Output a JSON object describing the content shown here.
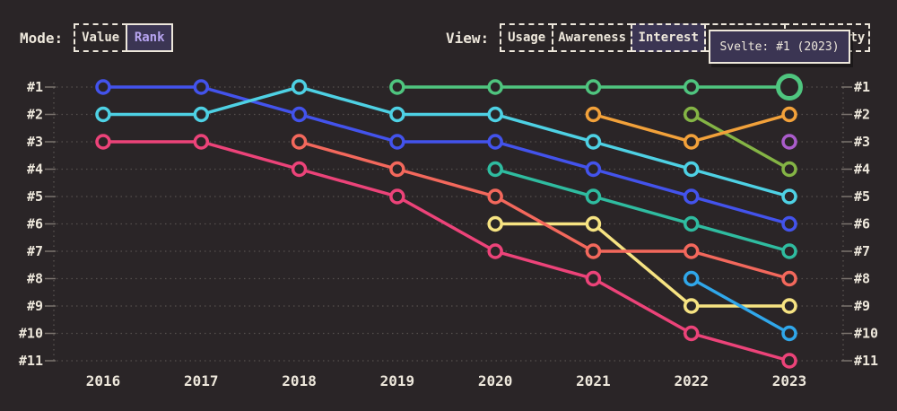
{
  "header": {
    "mode": {
      "label": "Mode:",
      "options": [
        {
          "id": "value",
          "label": "Value",
          "selected": false
        },
        {
          "id": "rank",
          "label": "Rank",
          "selected": true
        }
      ]
    },
    "view": {
      "label": "View:",
      "options": [
        {
          "id": "usage",
          "label": "Usage",
          "selected": false
        },
        {
          "id": "awareness",
          "label": "Awareness",
          "selected": false
        },
        {
          "id": "interest",
          "label": "Interest",
          "selected": true
        },
        {
          "id": "hidden-option",
          "label": "",
          "selected": false
        },
        {
          "id": "positivity",
          "label": "Positivity",
          "selected": false
        }
      ]
    }
  },
  "tooltip": {
    "text": "Svelte: #1 (2023)"
  },
  "chart_data": {
    "type": "line",
    "variant": "rank-bump",
    "title": "",
    "x": [
      2016,
      2017,
      2018,
      2019,
      2020,
      2021,
      2022,
      2023
    ],
    "x_tick_labels": [
      "2016",
      "2017",
      "2018",
      "2019",
      "2020",
      "2021",
      "2022",
      "2023"
    ],
    "y_ticks_left": [
      "#1",
      "#2",
      "#3",
      "#4",
      "#5",
      "#6",
      "#7",
      "#8",
      "#9",
      "#10",
      "#11"
    ],
    "y_ticks_right": [
      "#1",
      "#2",
      "#3",
      "#4",
      "#5",
      "#6",
      "#7",
      "#8",
      "#9",
      "#10",
      "#11"
    ],
    "ylim": [
      1,
      11
    ],
    "y_inverted": true,
    "grid": "dotted horizontal line per rank, dotted vertical axis lines left and right",
    "legend": "none",
    "highlight": {
      "series": "svelte",
      "year": 2023,
      "rank": 1
    },
    "series": [
      {
        "id": "blue",
        "color": "#4353EC",
        "ranks": [
          1,
          1,
          2,
          3,
          3,
          4,
          5,
          6
        ]
      },
      {
        "id": "cyan",
        "color": "#4ED1E4",
        "ranks": [
          2,
          2,
          1,
          2,
          2,
          3,
          4,
          5
        ]
      },
      {
        "id": "pink",
        "color": "#EC4379",
        "ranks": [
          3,
          3,
          4,
          5,
          7,
          8,
          10,
          11
        ]
      },
      {
        "id": "salmon",
        "color": "#F3685C",
        "ranks": [
          null,
          null,
          3,
          4,
          5,
          7,
          7,
          8
        ]
      },
      {
        "id": "svelte",
        "color": "#4FC57F",
        "ranks": [
          null,
          null,
          null,
          1,
          1,
          1,
          1,
          1
        ]
      },
      {
        "id": "teal",
        "color": "#2FBCA0",
        "ranks": [
          null,
          null,
          null,
          null,
          4,
          5,
          6,
          7
        ]
      },
      {
        "id": "yellow",
        "color": "#F6E382",
        "ranks": [
          null,
          null,
          null,
          null,
          6,
          6,
          9,
          9
        ]
      },
      {
        "id": "orange",
        "color": "#F2A13A",
        "ranks": [
          null,
          null,
          null,
          null,
          null,
          2,
          3,
          2
        ]
      },
      {
        "id": "lime",
        "color": "#84B445",
        "ranks": [
          null,
          null,
          null,
          null,
          null,
          null,
          2,
          4
        ]
      },
      {
        "id": "sky",
        "color": "#30A7EA",
        "ranks": [
          null,
          null,
          null,
          null,
          null,
          null,
          8,
          10
        ]
      },
      {
        "id": "purple",
        "color": "#AA5CCB",
        "ranks": [
          null,
          null,
          null,
          null,
          null,
          null,
          null,
          3
        ]
      }
    ],
    "draw_order": [
      "pink",
      "yellow",
      "salmon",
      "teal",
      "blue",
      "cyan",
      "lime",
      "orange",
      "sky",
      "purple",
      "svelte"
    ]
  },
  "theme": {
    "background": "#2A2527",
    "text": "#EDE7DB",
    "grid": "#56504E",
    "tick": "#7B746F",
    "selected_bg": "#3B3553",
    "rank_selected_text": "#B7A4F0",
    "tooltip_bg": "#3B3553",
    "tooltip_border": "#EDE7DB"
  }
}
